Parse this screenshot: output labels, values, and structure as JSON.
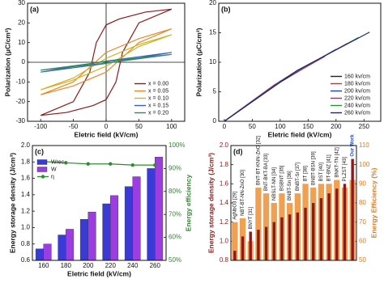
{
  "chart_data": [
    {
      "type": "line",
      "label": "(a)",
      "x_label": "Eletric field (kV/cm)",
      "y_label": "Polarization (μC/cm²)",
      "xlim": [
        -120,
        120
      ],
      "xticks": [
        -100,
        -50,
        0,
        50,
        100
      ],
      "ylim": [
        -30,
        30
      ],
      "yticks": [
        -30,
        -20,
        -10,
        0,
        10,
        20,
        30
      ],
      "zero_lines": true,
      "legend": "lower right",
      "series": [
        {
          "name": "x = 0.00",
          "color": "#8b1a1a",
          "x": [
            100,
            60,
            20,
            0,
            -15,
            -25,
            -50,
            -100,
            -60,
            -20,
            0,
            15,
            25,
            50,
            100
          ],
          "values": [
            27,
            25.5,
            22,
            19,
            10,
            -5,
            -20,
            -27,
            -25.5,
            -22,
            -19,
            -10,
            5,
            20,
            27
          ]
        },
        {
          "name": "x = 0.05",
          "color": "#e58a2b",
          "x": [
            100,
            50,
            0,
            -50,
            -100,
            -50,
            0,
            50,
            100
          ],
          "values": [
            17,
            12,
            5,
            -10,
            -16.5,
            -12,
            -5,
            10,
            17
          ]
        },
        {
          "name": "x = 0.10",
          "color": "#d4b01e",
          "x": [
            100,
            50,
            0,
            -50,
            -100,
            -50,
            0,
            50,
            100
          ],
          "values": [
            14,
            9,
            2,
            -8,
            -14,
            -9,
            -2,
            8,
            14
          ]
        },
        {
          "name": "x = 0.15",
          "color": "#3a5fcd",
          "x": [
            100,
            0,
            -100,
            0,
            100
          ],
          "values": [
            5,
            0.6,
            -5,
            -0.6,
            5
          ]
        },
        {
          "name": "x = 0.20",
          "color": "#2e8b57",
          "x": [
            100,
            0,
            -100,
            0,
            100
          ],
          "values": [
            4,
            0.4,
            -4,
            -0.4,
            4
          ]
        }
      ]
    },
    {
      "type": "line",
      "label": "(b)",
      "x_label": "Eletric field (kV/cm)",
      "y_label": "Polarization (μC/cm²)",
      "xlim": [
        -10,
        280
      ],
      "xticks": [
        0,
        50,
        100,
        150,
        200,
        250
      ],
      "ylim": [
        0,
        20
      ],
      "yticks": [
        0,
        5,
        10,
        15,
        20
      ],
      "legend": "lower right",
      "series": [
        {
          "name": "160 kv/cm",
          "color": "#222222",
          "x": [
            0,
            80,
            160
          ],
          "values": [
            0,
            5.5,
            10
          ]
        },
        {
          "name": "180 kv/cm",
          "color": "#d62728",
          "x": [
            0,
            90,
            180
          ],
          "values": [
            0,
            6.2,
            11
          ]
        },
        {
          "name": "200 kv/cm",
          "color": "#1f3fbf",
          "x": [
            0,
            100,
            200
          ],
          "values": [
            0,
            6.8,
            12.2
          ]
        },
        {
          "name": "220 kv/cm",
          "color": "#c71585",
          "x": [
            0,
            110,
            220
          ],
          "values": [
            0,
            7.4,
            13.2
          ]
        },
        {
          "name": "240 kv/cm",
          "color": "#2e8b2e",
          "x": [
            0,
            120,
            240
          ],
          "values": [
            0,
            8,
            14.2
          ]
        },
        {
          "name": "260 kv/cm",
          "color": "#1a237e",
          "x": [
            0,
            130,
            260
          ],
          "values": [
            0,
            8.6,
            15.1
          ]
        }
      ]
    },
    {
      "type": "bar",
      "label": "(c)",
      "x_label": "Eletric field (kV/cm)",
      "y_label": "Energy storage density (J/cm³)",
      "y2_label": "Energy efficiency",
      "categories": [
        "160",
        "180",
        "200",
        "220",
        "240",
        "260"
      ],
      "ylim": [
        0.6,
        2.0
      ],
      "yticks": [
        0.6,
        0.8,
        {
          "value": 1,
          "label": "1.0"
        },
        1.2,
        1.4,
        1.6,
        1.8,
        {
          "value": 2,
          "label": "2.0"
        }
      ],
      "y2lim": [
        50,
        100
      ],
      "y2ticks": [
        {
          "value": 50,
          "label": "50%"
        },
        {
          "value": 60,
          "label": "60%"
        },
        {
          "value": 70,
          "label": "70%"
        },
        {
          "value": 80,
          "label": "80%"
        },
        {
          "value": 90,
          "label": "90%"
        },
        {
          "value": 100,
          "label": "100%"
        }
      ],
      "y2_color": "#2e8b2e",
      "legend": "upper left",
      "series": [
        {
          "name": "Wrec",
          "color": "#3a3ad6",
          "values": [
            0.74,
            0.91,
            1.1,
            1.29,
            1.5,
            1.72
          ]
        },
        {
          "name": "W",
          "color": "#9b3de0",
          "values": [
            0.8,
            0.98,
            1.19,
            1.39,
            1.62,
            1.86
          ]
        },
        {
          "name": "η",
          "color": "#2e8b2e",
          "axis": "y2",
          "values": [
            93,
            92.5,
            92,
            92,
            91.5,
            91.5
          ]
        }
      ]
    },
    {
      "type": "bar",
      "label": "(d)",
      "y_label": "Energy storage density (J/cm³)",
      "y2_label": "Energy Efficiency (%)",
      "categories": [
        "AgNbO3 [29]",
        "NBT-BT-NN-ZnO [30]",
        "BNYT [31]",
        "BNT-BT-KNN-ZnO [32]",
        "BNT-BKT-BA [33]",
        "NBSLT-NN [34]",
        "BSBNT [35]",
        "BNBT-Sn [36]",
        "BNBT-Sr [37]",
        "BT [38]",
        "BNBT-BSN [39]",
        "BST [40]",
        "BT-BNZ [41]",
        "BNKT-TN [42]",
        "PLZST [43]",
        "Our Work"
      ],
      "ylim": [
        0.8,
        2.0
      ],
      "yticks": [
        0.8,
        {
          "value": 1,
          "label": "1.0"
        },
        1.2,
        1.4,
        1.6,
        1.8,
        {
          "value": 2,
          "label": "2.0"
        }
      ],
      "y2lim": [
        50,
        110
      ],
      "y2ticks": [
        50,
        60,
        70,
        80,
        90,
        100,
        110
      ],
      "y_color": "#8b1a1a",
      "y2_color": "#e07b20",
      "series": [
        {
          "name": "Energy Efficiency",
          "color": "#f0a050",
          "axis": "y2",
          "values": [
            70,
            72,
            60,
            88,
            85,
            80,
            85,
            80,
            85,
            90,
            88,
            90,
            90,
            92,
            88,
            92
          ]
        },
        {
          "name": "Energy storage density",
          "color": "#8b1a1a",
          "values": [
            0.9,
            1.05,
            1.1,
            1.12,
            1.15,
            1.2,
            1.25,
            1.28,
            1.3,
            1.35,
            1.4,
            1.45,
            1.5,
            1.55,
            1.6,
            1.86
          ]
        }
      ]
    }
  ]
}
